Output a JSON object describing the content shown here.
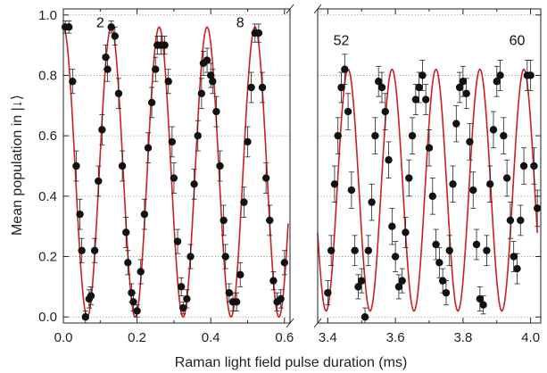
{
  "chart_data": {
    "type": "scatter",
    "xlabel": "Raman light field pulse duration (ms)",
    "ylabel": "Mean population in |↓⟩",
    "ylim": [
      -0.02,
      1.02
    ],
    "yticks": [
      "0.0",
      "0.2",
      "0.4",
      "0.6",
      "0.8",
      "1.0"
    ],
    "grid": "horizontal dotted",
    "axis_break": true,
    "colors": {
      "points": "#111111",
      "fit": "#cc1f1f",
      "grid": "#888888"
    },
    "panels": [
      {
        "name": "left",
        "xlim": [
          0.0,
          0.615
        ],
        "xticks": [
          "0.0",
          "0.2",
          "0.4",
          "0.6"
        ],
        "annotations": [
          {
            "text": "2",
            "x": 0.1,
            "y": 0.96
          },
          {
            "text": "8",
            "x": 0.48,
            "y": 0.96
          }
        ],
        "fit": {
          "amplitude": 0.48,
          "offset": 0.48,
          "period": 0.13,
          "phase_x": 0.0,
          "xmin": 0.0,
          "xmax": 0.61
        },
        "points": [
          {
            "x": 0.005,
            "y": 0.96,
            "err": 0.02
          },
          {
            "x": 0.015,
            "y": 0.96,
            "err": 0.02
          },
          {
            "x": 0.025,
            "y": 0.78,
            "err": 0.04
          },
          {
            "x": 0.035,
            "y": 0.5,
            "err": 0.05
          },
          {
            "x": 0.045,
            "y": 0.34,
            "err": 0.05
          },
          {
            "x": 0.05,
            "y": 0.22,
            "err": 0.04
          },
          {
            "x": 0.06,
            "y": 0.0,
            "err": 0.02
          },
          {
            "x": 0.07,
            "y": 0.06,
            "err": 0.03
          },
          {
            "x": 0.075,
            "y": 0.07,
            "err": 0.03
          },
          {
            "x": 0.085,
            "y": 0.22,
            "err": 0.04
          },
          {
            "x": 0.095,
            "y": 0.45,
            "err": 0.05
          },
          {
            "x": 0.105,
            "y": 0.62,
            "err": 0.05
          },
          {
            "x": 0.115,
            "y": 0.86,
            "err": 0.04
          },
          {
            "x": 0.12,
            "y": 0.82,
            "err": 0.04
          },
          {
            "x": 0.13,
            "y": 0.96,
            "err": 0.02
          },
          {
            "x": 0.14,
            "y": 0.93,
            "err": 0.03
          },
          {
            "x": 0.15,
            "y": 0.74,
            "err": 0.05
          },
          {
            "x": 0.16,
            "y": 0.5,
            "err": 0.05
          },
          {
            "x": 0.17,
            "y": 0.28,
            "err": 0.05
          },
          {
            "x": 0.175,
            "y": 0.18,
            "err": 0.04
          },
          {
            "x": 0.185,
            "y": 0.08,
            "err": 0.03
          },
          {
            "x": 0.19,
            "y": 0.05,
            "err": 0.03
          },
          {
            "x": 0.2,
            "y": 0.02,
            "err": 0.02
          },
          {
            "x": 0.21,
            "y": 0.15,
            "err": 0.04
          },
          {
            "x": 0.22,
            "y": 0.34,
            "err": 0.05
          },
          {
            "x": 0.23,
            "y": 0.56,
            "err": 0.05
          },
          {
            "x": 0.24,
            "y": 0.71,
            "err": 0.05
          },
          {
            "x": 0.25,
            "y": 0.82,
            "err": 0.04
          },
          {
            "x": 0.255,
            "y": 0.9,
            "err": 0.03
          },
          {
            "x": 0.265,
            "y": 0.9,
            "err": 0.03
          },
          {
            "x": 0.275,
            "y": 0.9,
            "err": 0.03
          },
          {
            "x": 0.285,
            "y": 0.78,
            "err": 0.04
          },
          {
            "x": 0.295,
            "y": 0.58,
            "err": 0.05
          },
          {
            "x": 0.3,
            "y": 0.46,
            "err": 0.05
          },
          {
            "x": 0.31,
            "y": 0.25,
            "err": 0.04
          },
          {
            "x": 0.32,
            "y": 0.1,
            "err": 0.03
          },
          {
            "x": 0.325,
            "y": 0.03,
            "err": 0.02
          },
          {
            "x": 0.335,
            "y": 0.06,
            "err": 0.03
          },
          {
            "x": 0.345,
            "y": 0.2,
            "err": 0.04
          },
          {
            "x": 0.355,
            "y": 0.44,
            "err": 0.05
          },
          {
            "x": 0.365,
            "y": 0.6,
            "err": 0.05
          },
          {
            "x": 0.375,
            "y": 0.74,
            "err": 0.05
          },
          {
            "x": 0.38,
            "y": 0.84,
            "err": 0.04
          },
          {
            "x": 0.39,
            "y": 0.85,
            "err": 0.04
          },
          {
            "x": 0.4,
            "y": 0.8,
            "err": 0.04
          },
          {
            "x": 0.405,
            "y": 0.78,
            "err": 0.04
          },
          {
            "x": 0.415,
            "y": 0.68,
            "err": 0.05
          },
          {
            "x": 0.425,
            "y": 0.5,
            "err": 0.05
          },
          {
            "x": 0.435,
            "y": 0.32,
            "err": 0.05
          },
          {
            "x": 0.44,
            "y": 0.2,
            "err": 0.04
          },
          {
            "x": 0.45,
            "y": 0.08,
            "err": 0.03
          },
          {
            "x": 0.46,
            "y": 0.05,
            "err": 0.03
          },
          {
            "x": 0.47,
            "y": 0.05,
            "err": 0.03
          },
          {
            "x": 0.48,
            "y": 0.14,
            "err": 0.04
          },
          {
            "x": 0.49,
            "y": 0.38,
            "err": 0.05
          },
          {
            "x": 0.5,
            "y": 0.58,
            "err": 0.05
          },
          {
            "x": 0.51,
            "y": 0.76,
            "err": 0.05
          },
          {
            "x": 0.52,
            "y": 0.94,
            "err": 0.03
          },
          {
            "x": 0.53,
            "y": 0.94,
            "err": 0.03
          },
          {
            "x": 0.54,
            "y": 0.76,
            "err": 0.05
          },
          {
            "x": 0.55,
            "y": 0.46,
            "err": 0.05
          },
          {
            "x": 0.56,
            "y": 0.32,
            "err": 0.05
          },
          {
            "x": 0.57,
            "y": 0.12,
            "err": 0.03
          },
          {
            "x": 0.58,
            "y": 0.05,
            "err": 0.03
          },
          {
            "x": 0.59,
            "y": 0.06,
            "err": 0.03
          },
          {
            "x": 0.6,
            "y": 0.18,
            "err": 0.04
          }
        ]
      },
      {
        "name": "right",
        "xlim": [
          3.37,
          4.03
        ],
        "xticks": [
          "3.4",
          "3.6",
          "3.8",
          "4.0"
        ],
        "annotations": [
          {
            "text": "52",
            "x": 3.44,
            "y": 0.9
          },
          {
            "text": "60",
            "x": 3.96,
            "y": 0.9
          }
        ],
        "fit": {
          "amplitude": 0.4,
          "offset": 0.42,
          "period": 0.13,
          "phase_x": 3.46,
          "xmin": 3.37,
          "xmax": 4.02
        },
        "points": [
          {
            "x": 3.4,
            "y": 0.08,
            "err": 0.04
          },
          {
            "x": 3.41,
            "y": 0.22,
            "err": 0.05
          },
          {
            "x": 3.42,
            "y": 0.44,
            "err": 0.06
          },
          {
            "x": 3.43,
            "y": 0.6,
            "err": 0.06
          },
          {
            "x": 3.44,
            "y": 0.76,
            "err": 0.05
          },
          {
            "x": 3.45,
            "y": 0.82,
            "err": 0.05
          },
          {
            "x": 3.46,
            "y": 0.68,
            "err": 0.06
          },
          {
            "x": 3.47,
            "y": 0.42,
            "err": 0.06
          },
          {
            "x": 3.48,
            "y": 0.22,
            "err": 0.05
          },
          {
            "x": 3.49,
            "y": 0.1,
            "err": 0.04
          },
          {
            "x": 3.5,
            "y": 0.12,
            "err": 0.04
          },
          {
            "x": 3.51,
            "y": 0.0,
            "err": 0.03
          },
          {
            "x": 3.52,
            "y": 0.22,
            "err": 0.05
          },
          {
            "x": 3.53,
            "y": 0.38,
            "err": 0.06
          },
          {
            "x": 3.54,
            "y": 0.6,
            "err": 0.06
          },
          {
            "x": 3.55,
            "y": 0.78,
            "err": 0.05
          },
          {
            "x": 3.56,
            "y": 0.76,
            "err": 0.05
          },
          {
            "x": 3.57,
            "y": 0.68,
            "err": 0.06
          },
          {
            "x": 3.58,
            "y": 0.52,
            "err": 0.06
          },
          {
            "x": 3.59,
            "y": 0.3,
            "err": 0.06
          },
          {
            "x": 3.6,
            "y": 0.2,
            "err": 0.05
          },
          {
            "x": 3.61,
            "y": 0.1,
            "err": 0.04
          },
          {
            "x": 3.62,
            "y": 0.12,
            "err": 0.04
          },
          {
            "x": 3.63,
            "y": 0.28,
            "err": 0.05
          },
          {
            "x": 3.64,
            "y": 0.46,
            "err": 0.06
          },
          {
            "x": 3.65,
            "y": 0.6,
            "err": 0.06
          },
          {
            "x": 3.66,
            "y": 0.72,
            "err": 0.05
          },
          {
            "x": 3.67,
            "y": 0.76,
            "err": 0.05
          },
          {
            "x": 3.68,
            "y": 0.8,
            "err": 0.05
          },
          {
            "x": 3.69,
            "y": 0.72,
            "err": 0.05
          },
          {
            "x": 3.7,
            "y": 0.56,
            "err": 0.06
          },
          {
            "x": 3.71,
            "y": 0.4,
            "err": 0.06
          },
          {
            "x": 3.72,
            "y": 0.24,
            "err": 0.05
          },
          {
            "x": 3.73,
            "y": 0.18,
            "err": 0.05
          },
          {
            "x": 3.74,
            "y": 0.12,
            "err": 0.04
          },
          {
            "x": 3.75,
            "y": 0.08,
            "err": 0.04
          },
          {
            "x": 3.76,
            "y": 0.22,
            "err": 0.05
          },
          {
            "x": 3.77,
            "y": 0.44,
            "err": 0.06
          },
          {
            "x": 3.78,
            "y": 0.64,
            "err": 0.06
          },
          {
            "x": 3.79,
            "y": 0.76,
            "err": 0.05
          },
          {
            "x": 3.8,
            "y": 0.78,
            "err": 0.05
          },
          {
            "x": 3.81,
            "y": 0.74,
            "err": 0.05
          },
          {
            "x": 3.82,
            "y": 0.58,
            "err": 0.06
          },
          {
            "x": 3.83,
            "y": 0.42,
            "err": 0.06
          },
          {
            "x": 3.84,
            "y": 0.24,
            "err": 0.05
          },
          {
            "x": 3.85,
            "y": 0.06,
            "err": 0.04
          },
          {
            "x": 3.86,
            "y": 0.04,
            "err": 0.03
          },
          {
            "x": 3.87,
            "y": 0.22,
            "err": 0.05
          },
          {
            "x": 3.88,
            "y": 0.44,
            "err": 0.06
          },
          {
            "x": 3.89,
            "y": 0.62,
            "err": 0.06
          },
          {
            "x": 3.9,
            "y": 0.78,
            "err": 0.05
          },
          {
            "x": 3.91,
            "y": 0.8,
            "err": 0.05
          },
          {
            "x": 3.92,
            "y": 0.6,
            "err": 0.06
          },
          {
            "x": 3.93,
            "y": 0.46,
            "err": 0.06
          },
          {
            "x": 3.94,
            "y": 0.32,
            "err": 0.06
          },
          {
            "x": 3.95,
            "y": 0.2,
            "err": 0.05
          },
          {
            "x": 3.96,
            "y": 0.16,
            "err": 0.05
          },
          {
            "x": 3.97,
            "y": 0.32,
            "err": 0.05
          },
          {
            "x": 3.98,
            "y": 0.5,
            "err": 0.06
          },
          {
            "x": 3.99,
            "y": 0.8,
            "err": 0.05
          },
          {
            "x": 4.0,
            "y": 0.8,
            "err": 0.05
          },
          {
            "x": 4.01,
            "y": 0.5,
            "err": 0.06
          },
          {
            "x": 4.02,
            "y": 0.36,
            "err": 0.06
          }
        ]
      }
    ]
  }
}
